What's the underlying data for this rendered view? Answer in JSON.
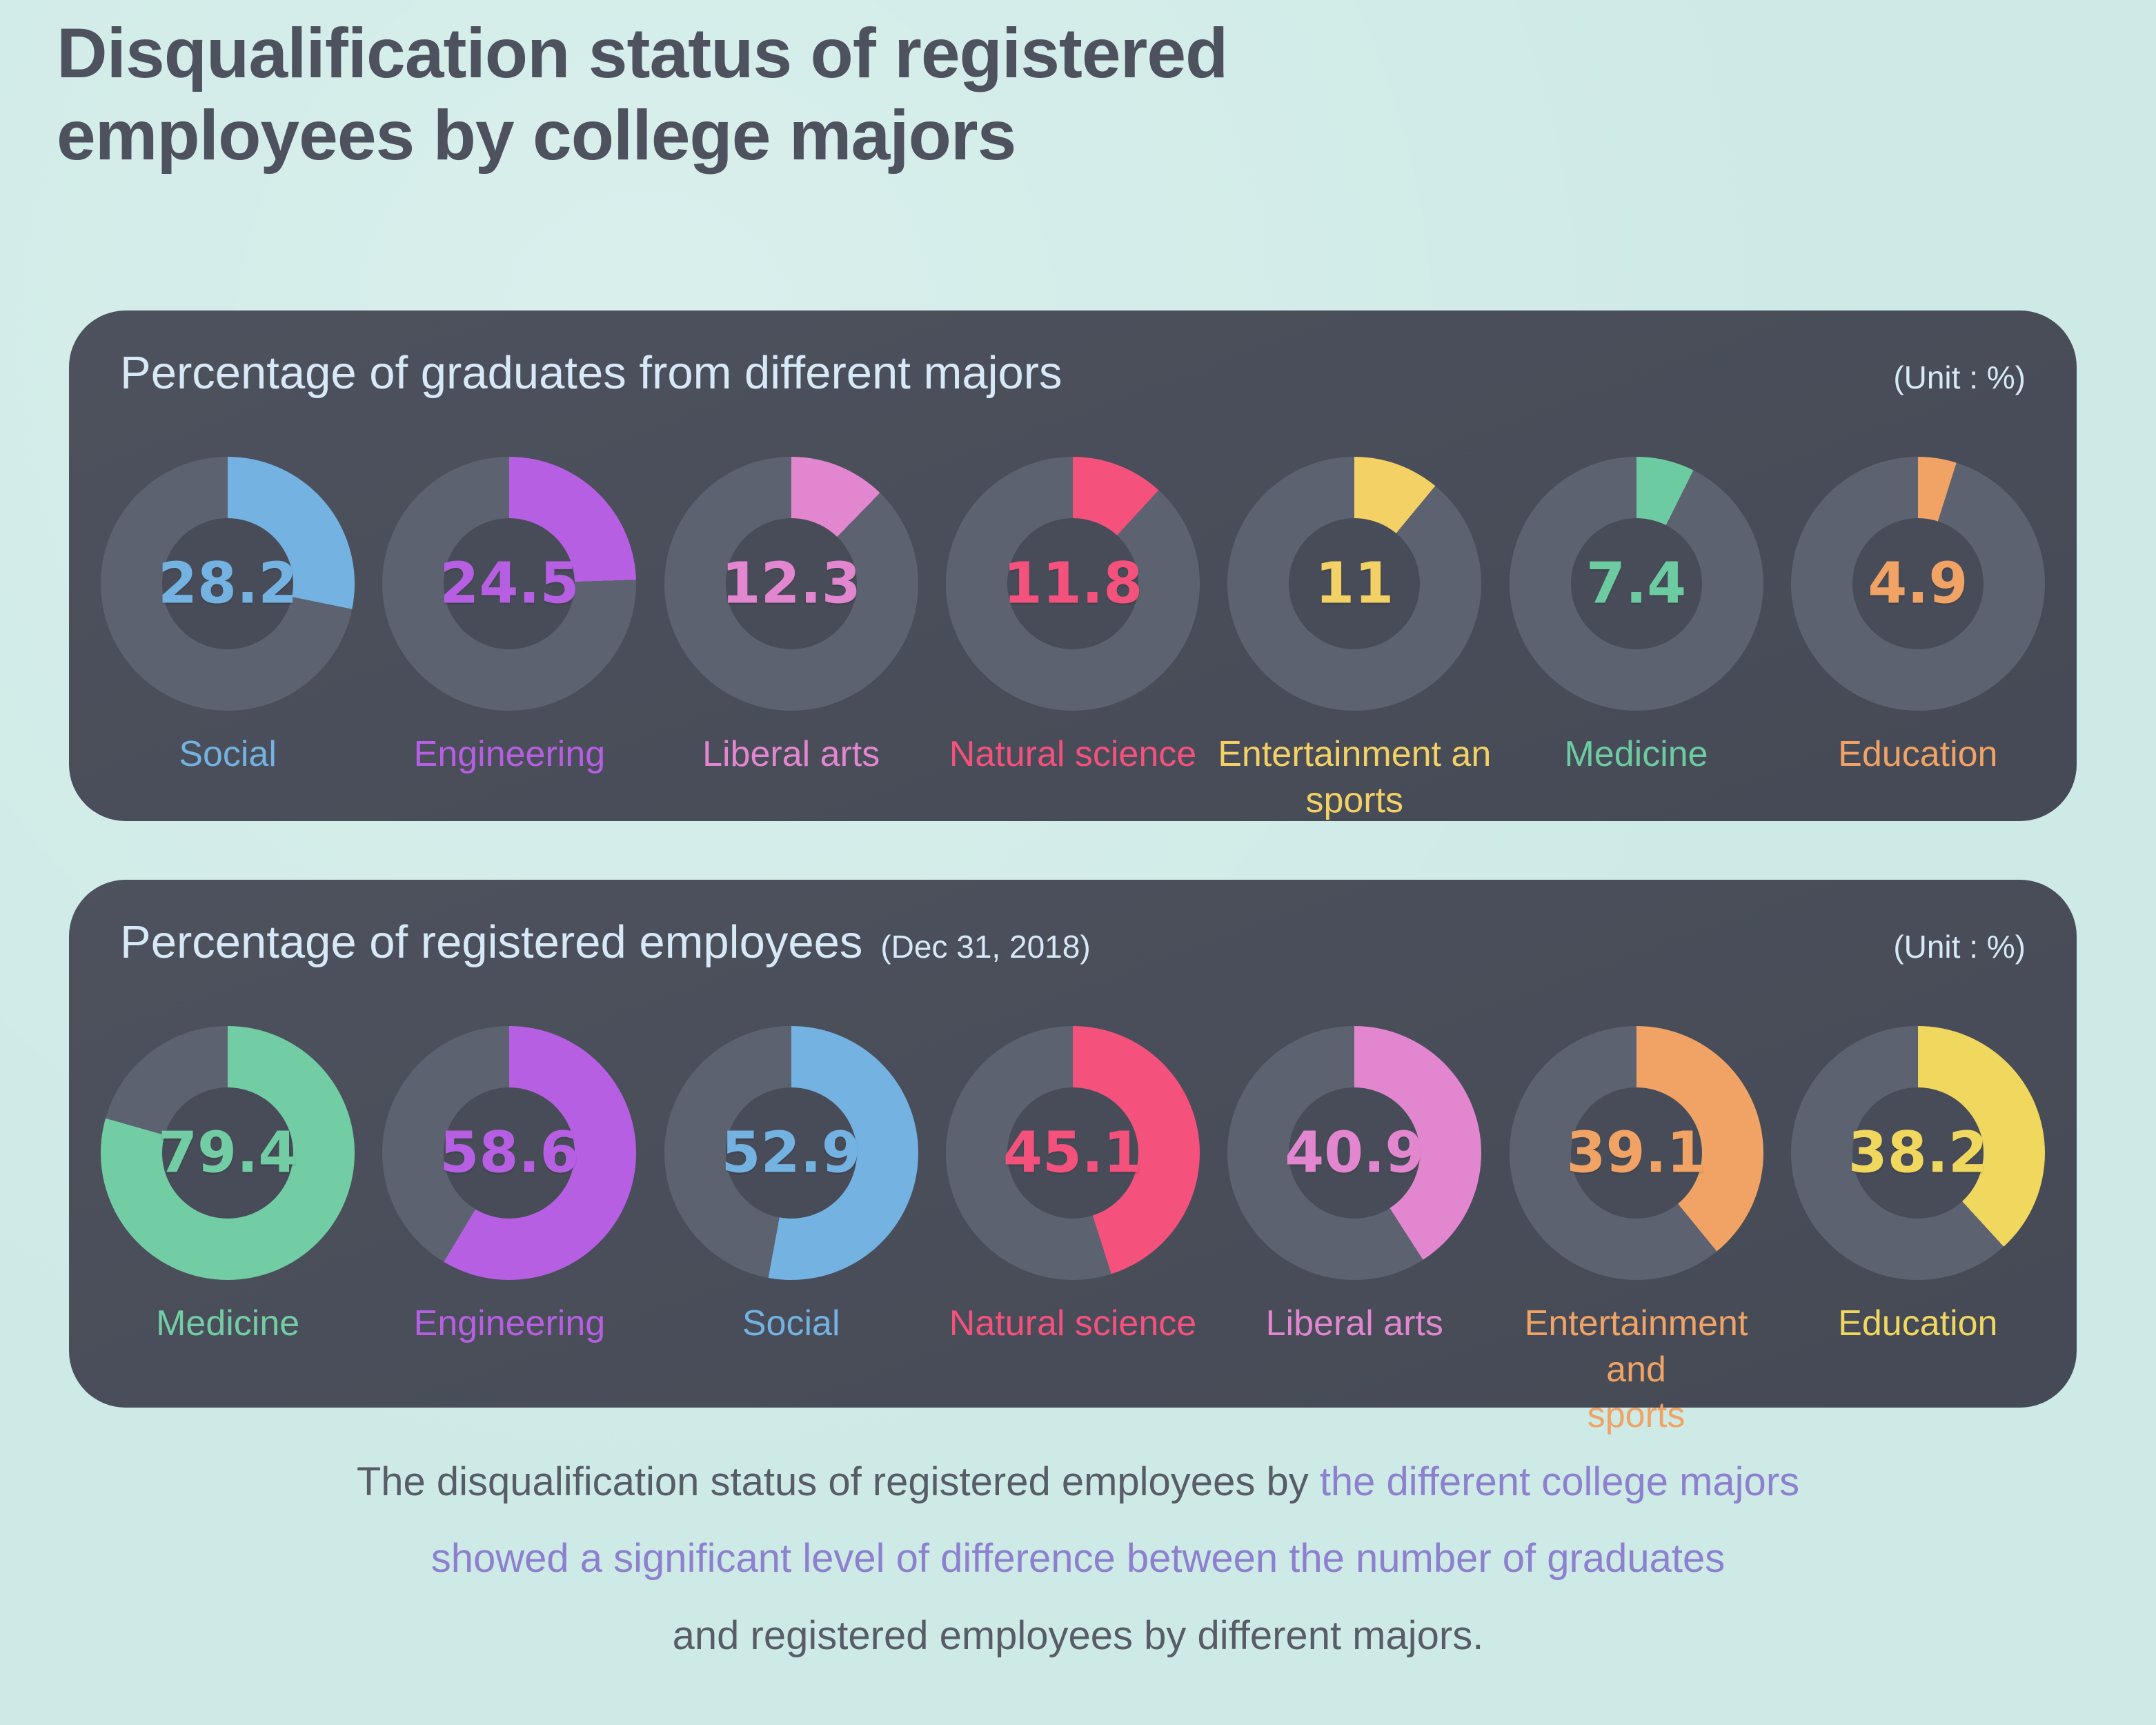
{
  "title_lines": [
    "Disqualification status of registered",
    "employees by college majors"
  ],
  "colors": {
    "background": "#cdeae6",
    "panel": "#474c58",
    "track": "#5c6270",
    "heading_text": "#d7e9f7",
    "title_text": "#4d525e",
    "footer_dark": "#575c66",
    "footer_accent": "#8d80ce"
  },
  "panels": [
    {
      "heading": "Percentage of graduates from different majors",
      "subheading": "",
      "unit": "(Unit : %)",
      "items": [
        {
          "label": "Social",
          "label_lines": [
            "Social"
          ],
          "value": 28.2,
          "color": "#74b2e2"
        },
        {
          "label": "Engineering",
          "label_lines": [
            "Engineering"
          ],
          "value": 24.5,
          "color": "#b75fe3"
        },
        {
          "label": "Liberal arts",
          "label_lines": [
            "Liberal arts"
          ],
          "value": 12.3,
          "color": "#e287cf"
        },
        {
          "label": "Natural science",
          "label_lines": [
            "Natural science"
          ],
          "value": 11.8,
          "color": "#f4517c"
        },
        {
          "label": "Entertainment an sports",
          "label_lines": [
            "Entertainment an",
            "sports"
          ],
          "value": 11,
          "color": "#f4d164"
        },
        {
          "label": "Medicine",
          "label_lines": [
            "Medicine"
          ],
          "value": 7.4,
          "color": "#6dcba1"
        },
        {
          "label": "Education",
          "label_lines": [
            "Education"
          ],
          "value": 4.9,
          "color": "#f0a364"
        }
      ]
    },
    {
      "heading": "Percentage of registered employees",
      "subheading": "(Dec 31, 2018)",
      "unit": "(Unit : %)",
      "items": [
        {
          "label": "Medicine",
          "label_lines": [
            "Medicine"
          ],
          "value": 79.4,
          "color": "#72cda4"
        },
        {
          "label": "Engineering",
          "label_lines": [
            "Engineering"
          ],
          "value": 58.6,
          "color": "#b75fe3"
        },
        {
          "label": "Social",
          "label_lines": [
            "Social"
          ],
          "value": 52.9,
          "color": "#74b2e2"
        },
        {
          "label": "Natural science",
          "label_lines": [
            "Natural science"
          ],
          "value": 45.1,
          "color": "#f4517c"
        },
        {
          "label": "Liberal arts",
          "label_lines": [
            "Liberal arts"
          ],
          "value": 40.9,
          "color": "#e287cf"
        },
        {
          "label": "Entertainment and sports",
          "label_lines": [
            "Entertainment and",
            "sports"
          ],
          "value": 39.1,
          "color": "#f0a364"
        },
        {
          "label": "Education",
          "label_lines": [
            "Education"
          ],
          "value": 38.2,
          "color": "#f0d75e"
        }
      ]
    }
  ],
  "footer": {
    "lines": [
      {
        "parts": [
          {
            "text": "The disqualification status of registered employees by ",
            "style": "dark"
          },
          {
            "text": "the different college majors",
            "style": "accent"
          }
        ]
      },
      {
        "parts": [
          {
            "text": "showed a significant level of difference between the number of graduates",
            "style": "accent"
          }
        ]
      },
      {
        "parts": [
          {
            "text": "and registered employees by different majors.",
            "style": "dark"
          }
        ]
      }
    ]
  },
  "chart_data": [
    {
      "type": "pie",
      "variant": "donut-percentage",
      "title": "Percentage of graduates from different majors",
      "unit": "%",
      "categories": [
        "Social",
        "Engineering",
        "Liberal arts",
        "Natural science",
        "Entertainment an sports",
        "Medicine",
        "Education"
      ],
      "values": [
        28.2,
        24.5,
        12.3,
        11.8,
        11,
        7.4,
        4.9
      ],
      "colors": [
        "#74b2e2",
        "#b75fe3",
        "#e287cf",
        "#f4517c",
        "#f4d164",
        "#6dcba1",
        "#f0a364"
      ],
      "value_range": [
        0,
        100
      ],
      "legend_position": "below-each-donut"
    },
    {
      "type": "pie",
      "variant": "donut-percentage",
      "title": "Percentage of registered employees (Dec 31, 2018)",
      "unit": "%",
      "categories": [
        "Medicine",
        "Engineering",
        "Social",
        "Natural science",
        "Liberal arts",
        "Entertainment and sports",
        "Education"
      ],
      "values": [
        79.4,
        58.6,
        52.9,
        45.1,
        40.9,
        39.1,
        38.2
      ],
      "colors": [
        "#72cda4",
        "#b75fe3",
        "#74b2e2",
        "#f4517c",
        "#e287cf",
        "#f0a364",
        "#f0d75e"
      ],
      "value_range": [
        0,
        100
      ],
      "legend_position": "below-each-donut"
    }
  ]
}
